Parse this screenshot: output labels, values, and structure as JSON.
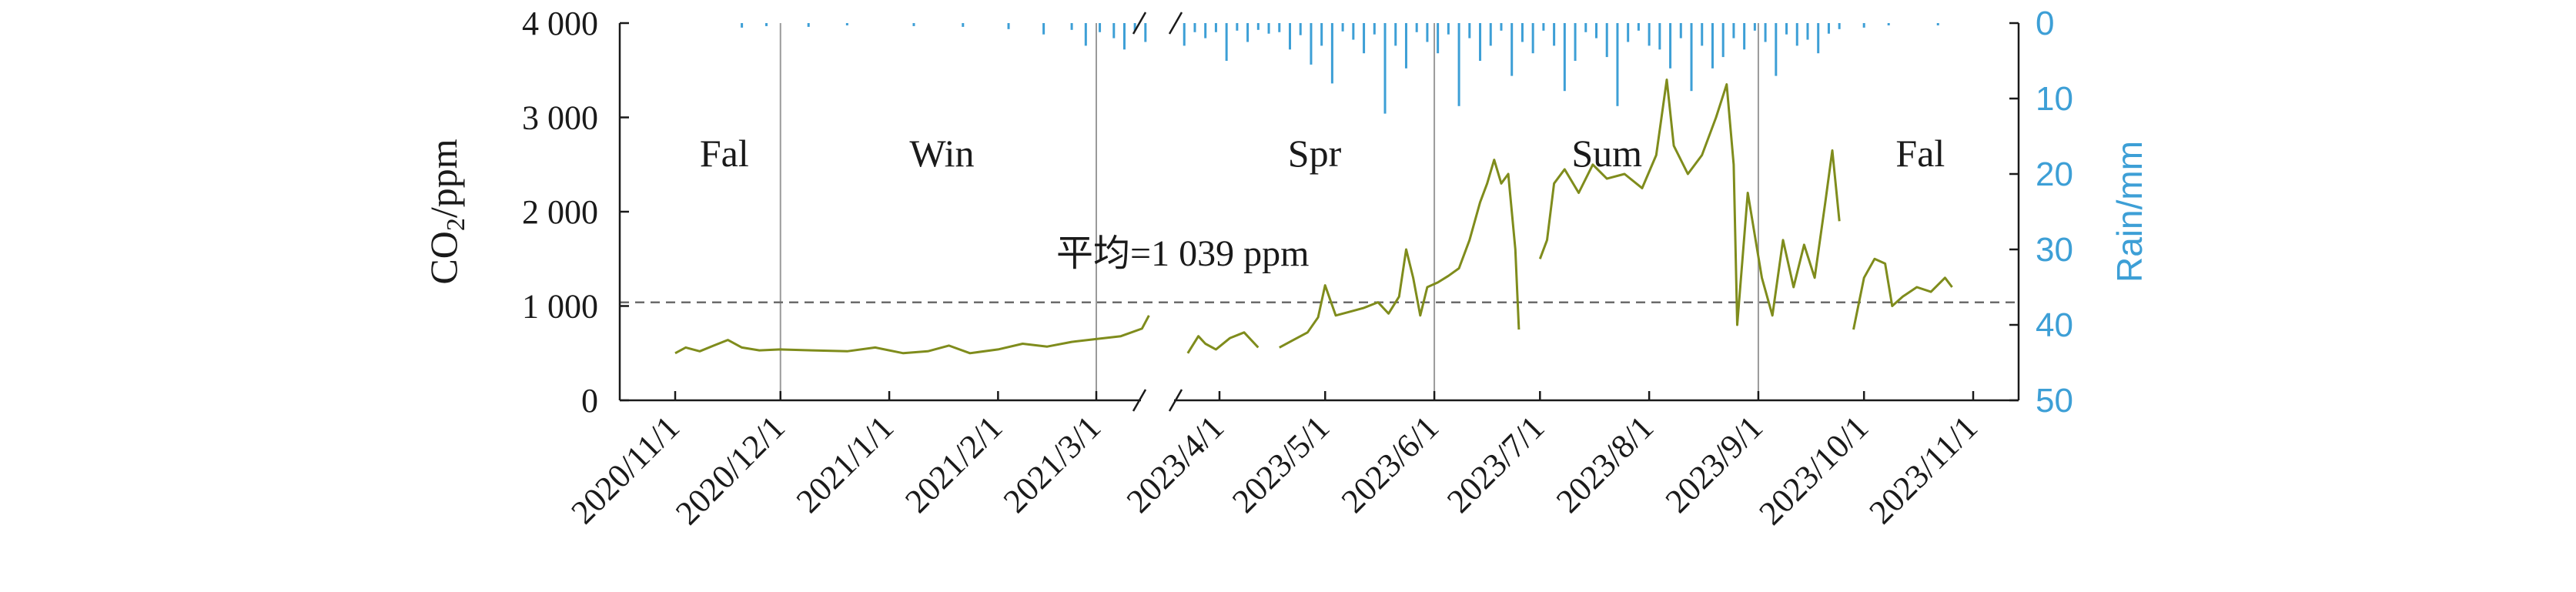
{
  "chart_data": {
    "type": "line",
    "xlabel": "",
    "ylabel": "CO2/ppm",
    "ylabel_parts": {
      "base": "CO",
      "sub": "2",
      "rest": "/ppm"
    },
    "ylabel_right": "Rain/mm",
    "ylim": [
      0,
      4000
    ],
    "ylim_right": [
      0,
      50
    ],
    "y_ticks": [
      0,
      1000,
      2000,
      3000,
      4000
    ],
    "y_tick_labels": [
      "0",
      "1 000",
      "2 000",
      "3 000",
      "4 000"
    ],
    "y_right_ticks": [
      0,
      10,
      20,
      30,
      40,
      50
    ],
    "y_right_tick_labels": [
      "0",
      "10",
      "20",
      "30",
      "40",
      "50"
    ],
    "x_tick_labels": [
      "2020/11/1",
      "2020/12/1",
      "2021/1/1",
      "2021/2/1",
      "2021/3/1",
      "2023/4/1",
      "2023/5/1",
      "2023/6/1",
      "2023/7/1",
      "2023/8/1",
      "2023/9/1",
      "2023/10/1",
      "2023/11/1"
    ],
    "axis_break": "between 2021/3/1 and 2023/4/1",
    "mean_value": 1039,
    "mean_label": "平均=1 039 ppm",
    "seasons": [
      {
        "label": "Fal",
        "x": "2020/11/15"
      },
      {
        "label": "Win",
        "x": "2021/1/16"
      },
      {
        "label": "Spr",
        "x": "2023/4/28"
      },
      {
        "label": "Sum",
        "x": "2023/7/20"
      },
      {
        "label": "Fal",
        "x": "2023/10/17"
      }
    ],
    "season_dividers": [
      "2020/12/1",
      "2021/3/1",
      "2023/6/1",
      "2023/9/1"
    ],
    "series": [
      {
        "type": "line",
        "color": "#7f8c1c",
        "segments": [
          [
            [
              "2020/11/1",
              500
            ],
            [
              "2020/11/4",
              560
            ],
            [
              "2020/11/8",
              520
            ],
            [
              "2020/11/12",
              580
            ],
            [
              "2020/11/16",
              640
            ],
            [
              "2020/11/20",
              560
            ],
            [
              "2020/11/25",
              530
            ],
            [
              "2020/12/1",
              540
            ],
            [
              "2020/12/10",
              530
            ],
            [
              "2020/12/20",
              520
            ],
            [
              "2020/12/28",
              560
            ],
            [
              "2021/1/5",
              500
            ],
            [
              "2021/1/12",
              520
            ],
            [
              "2021/1/18",
              580
            ],
            [
              "2021/1/24",
              500
            ],
            [
              "2021/2/1",
              540
            ],
            [
              "2021/2/8",
              600
            ],
            [
              "2021/2/15",
              570
            ],
            [
              "2021/2/22",
              620
            ],
            [
              "2021/3/1",
              650
            ],
            [
              "2021/3/8",
              680
            ],
            [
              "2021/3/14",
              760
            ],
            [
              "2021/3/16",
              900
            ]
          ],
          [
            [
              "2023/3/23",
              500
            ],
            [
              "2023/3/26",
              680
            ],
            [
              "2023/3/28",
              600
            ],
            [
              "2023/3/31",
              540
            ],
            [
              "2023/4/4",
              660
            ],
            [
              "2023/4/8",
              720
            ],
            [
              "2023/4/12",
              560
            ]
          ],
          [
            [
              "2023/4/18",
              560
            ],
            [
              "2023/4/22",
              640
            ],
            [
              "2023/4/26",
              720
            ],
            [
              "2023/4/29",
              880
            ],
            [
              "2023/5/1",
              1220
            ],
            [
              "2023/5/4",
              900
            ],
            [
              "2023/5/8",
              940
            ],
            [
              "2023/5/12",
              980
            ],
            [
              "2023/5/16",
              1040
            ],
            [
              "2023/5/19",
              920
            ],
            [
              "2023/5/22",
              1100
            ],
            [
              "2023/5/24",
              1600
            ],
            [
              "2023/5/26",
              1300
            ],
            [
              "2023/5/28",
              900
            ],
            [
              "2023/5/30",
              1200
            ],
            [
              "2023/6/2",
              1250
            ],
            [
              "2023/6/5",
              1320
            ],
            [
              "2023/6/8",
              1400
            ],
            [
              "2023/6/11",
              1700
            ],
            [
              "2023/6/14",
              2100
            ],
            [
              "2023/6/16",
              2300
            ],
            [
              "2023/6/18",
              2550
            ],
            [
              "2023/6/20",
              2300
            ],
            [
              "2023/6/22",
              2400
            ],
            [
              "2023/6/24",
              1600
            ],
            [
              "2023/6/25",
              750
            ]
          ],
          [
            [
              "2023/7/1",
              1500
            ],
            [
              "2023/7/3",
              1700
            ],
            [
              "2023/7/5",
              2300
            ],
            [
              "2023/7/8",
              2450
            ],
            [
              "2023/7/12",
              2200
            ],
            [
              "2023/7/16",
              2500
            ],
            [
              "2023/7/20",
              2350
            ],
            [
              "2023/7/25",
              2400
            ],
            [
              "2023/7/30",
              2250
            ],
            [
              "2023/8/3",
              2600
            ],
            [
              "2023/8/6",
              3400
            ],
            [
              "2023/8/8",
              2700
            ],
            [
              "2023/8/12",
              2400
            ],
            [
              "2023/8/16",
              2600
            ],
            [
              "2023/8/20",
              3000
            ],
            [
              "2023/8/23",
              3350
            ],
            [
              "2023/8/25",
              2500
            ],
            [
              "2023/8/26",
              800
            ],
            [
              "2023/8/29",
              2200
            ],
            [
              "2023/9/2",
              1300
            ],
            [
              "2023/9/5",
              900
            ],
            [
              "2023/9/8",
              1700
            ],
            [
              "2023/9/11",
              1200
            ],
            [
              "2023/9/14",
              1650
            ],
            [
              "2023/9/17",
              1300
            ],
            [
              "2023/9/20",
              2100
            ],
            [
              "2023/9/22",
              2650
            ],
            [
              "2023/9/24",
              1900
            ]
          ],
          [
            [
              "2023/9/28",
              750
            ],
            [
              "2023/10/1",
              1300
            ],
            [
              "2023/10/4",
              1500
            ],
            [
              "2023/10/7",
              1450
            ],
            [
              "2023/10/9",
              1000
            ],
            [
              "2023/10/12",
              1100
            ],
            [
              "2023/10/16",
              1200
            ],
            [
              "2023/10/20",
              1150
            ],
            [
              "2023/10/24",
              1300
            ],
            [
              "2023/10/26",
              1200
            ]
          ]
        ]
      },
      {
        "type": "bar",
        "color": "#3d9fd6",
        "axis": "right",
        "x": [
          "2020/11/20",
          "2020/11/27",
          "2020/12/9",
          "2020/12/20",
          "2021/1/8",
          "2021/1/22",
          "2021/2/4",
          "2021/2/14",
          "2021/2/22",
          "2021/2/26",
          "2021/3/2",
          "2021/3/6",
          "2021/3/9",
          "2021/3/12",
          "2021/3/15",
          "2023/3/22",
          "2023/3/25",
          "2023/3/28",
          "2023/3/31",
          "2023/4/3",
          "2023/4/6",
          "2023/4/9",
          "2023/4/12",
          "2023/4/15",
          "2023/4/18",
          "2023/4/21",
          "2023/4/24",
          "2023/4/27",
          "2023/4/30",
          "2023/5/3",
          "2023/5/6",
          "2023/5/9",
          "2023/5/12",
          "2023/5/15",
          "2023/5/18",
          "2023/5/21",
          "2023/5/24",
          "2023/5/27",
          "2023/5/30",
          "2023/6/2",
          "2023/6/5",
          "2023/6/8",
          "2023/6/11",
          "2023/6/14",
          "2023/6/17",
          "2023/6/20",
          "2023/6/23",
          "2023/6/26",
          "2023/6/29",
          "2023/7/2",
          "2023/7/5",
          "2023/7/8",
          "2023/7/11",
          "2023/7/14",
          "2023/7/17",
          "2023/7/20",
          "2023/7/23",
          "2023/7/26",
          "2023/7/29",
          "2023/8/1",
          "2023/8/4",
          "2023/8/7",
          "2023/8/10",
          "2023/8/13",
          "2023/8/16",
          "2023/8/19",
          "2023/8/22",
          "2023/8/25",
          "2023/8/28",
          "2023/8/31",
          "2023/9/3",
          "2023/9/6",
          "2023/9/9",
          "2023/9/12",
          "2023/9/15",
          "2023/9/18",
          "2023/9/21",
          "2023/9/24",
          "2023/10/1",
          "2023/10/8",
          "2023/10/22"
        ],
        "values": [
          0.6,
          0.4,
          0.5,
          0.3,
          0.4,
          0.5,
          0.8,
          1.5,
          0.9,
          3.0,
          1.2,
          2.0,
          3.5,
          1.0,
          2.5,
          3.0,
          1.2,
          2.0,
          1.2,
          5.0,
          1.0,
          2.5,
          0.9,
          1.4,
          1.2,
          3.5,
          1.6,
          5.5,
          3.0,
          8.0,
          1.1,
          2.2,
          4.0,
          1.5,
          12.0,
          3.0,
          6.0,
          1.2,
          2.5,
          4.0,
          1.5,
          11.0,
          2.0,
          5.0,
          3.0,
          1.0,
          7.0,
          2.5,
          4.0,
          1.0,
          3.0,
          9.0,
          5.0,
          1.2,
          2.0,
          4.5,
          11.0,
          2.5,
          1.0,
          3.0,
          3.5,
          6.0,
          2.0,
          9.0,
          3.0,
          6.0,
          4.5,
          2.0,
          3.5,
          1.0,
          2.5,
          7.0,
          1.5,
          3.0,
          2.2,
          4.0,
          1.4,
          0.8,
          0.6,
          0.3,
          0.3
        ]
      }
    ]
  }
}
